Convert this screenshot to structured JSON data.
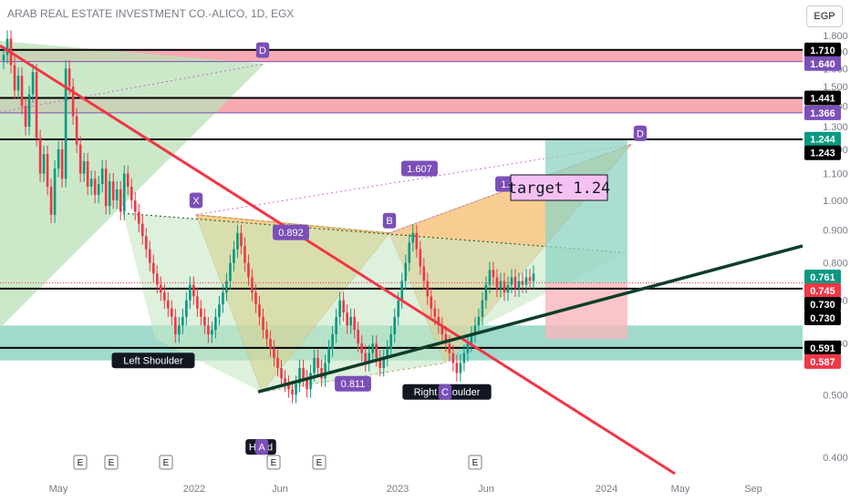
{
  "header": {
    "title": "ARAB REAL ESTATE INVESTMENT CO.-ALICO, 1D, EGX",
    "currency": "EGP"
  },
  "chart_data": {
    "type": "candlestick",
    "y_axis": {
      "ticks": [
        "1.800",
        "1.700",
        "1.600",
        "1.500",
        "1.400",
        "1.300",
        "1.200",
        "1.100",
        "1.000",
        "0.900",
        "0.800",
        "0.700",
        "0.600",
        "0.500",
        "0.400"
      ],
      "ylim": [
        0.36,
        1.84
      ],
      "scale": "log"
    },
    "x_axis": {
      "ticks": [
        {
          "label": "May",
          "date": "2021-05"
        },
        {
          "label": "2022",
          "date": "2022-01"
        },
        {
          "label": "Jun",
          "date": "2022-06"
        },
        {
          "label": "2023",
          "date": "2023-01"
        },
        {
          "label": "Jun",
          "date": "2023-06"
        },
        {
          "label": "2024",
          "date": "2024-01"
        },
        {
          "label": "May",
          "date": "2024-05"
        },
        {
          "label": "Sep",
          "date": "2024-09"
        }
      ]
    },
    "price_labels": [
      {
        "text": "1.710",
        "value": 1.71,
        "bg": "#000000"
      },
      {
        "text": "1.640",
        "value": 1.64,
        "bg": "#7b4fb8"
      },
      {
        "text": "1.441",
        "value": 1.441,
        "bg": "#000000"
      },
      {
        "text": "1.366",
        "value": 1.366,
        "bg": "#7b4fb8"
      },
      {
        "text": "1.244",
        "value": 1.244,
        "bg": "#089981"
      },
      {
        "text": "1.243",
        "value": 1.243,
        "bg": "#000000"
      },
      {
        "text": "0.761",
        "value": 0.761,
        "bg": "#089981"
      },
      {
        "text": "0.745",
        "value": 0.745,
        "bg": "#f23645"
      },
      {
        "text": "0.730",
        "value": 0.73,
        "bg": "#000000"
      },
      {
        "text": "0.730",
        "value": 0.73,
        "bg": "#000000"
      },
      {
        "text": "0.591",
        "value": 0.591,
        "bg": "#000000"
      },
      {
        "text": "0.587",
        "value": 0.587,
        "bg": "#f23645"
      }
    ],
    "harmonic_points": {
      "X": "X",
      "A": "A",
      "B": "B",
      "C": "C",
      "D": "D",
      "D_top": "D"
    },
    "ratios": [
      "0.892",
      "0.811",
      "1.607",
      "1.989"
    ],
    "pattern_labels": [
      "Left Shoulder",
      "Head",
      "Right Shoulder"
    ],
    "target_label": "target 1.24",
    "event_marker": "E",
    "series": [
      {
        "values": [
          1.68,
          1.78,
          1.62,
          1.48,
          1.56,
          1.4,
          1.3,
          1.46,
          1.58,
          1.25,
          1.1,
          1.18,
          1.05,
          0.95,
          1.12,
          1.2,
          1.08,
          1.6,
          1.5,
          1.35,
          1.22,
          1.1,
          1.15,
          1.05,
          1.08,
          1.02,
          1.06,
          1.12,
          0.98,
          1.07,
          1.0,
          1.04,
          0.96,
          1.1,
          1.05,
          1.0,
          0.96,
          0.92,
          0.88,
          0.84,
          0.8,
          0.77,
          0.74,
          0.72,
          0.7,
          0.68,
          0.66,
          0.62,
          0.64,
          0.66,
          0.7,
          0.74,
          0.71,
          0.68,
          0.66,
          0.64,
          0.62,
          0.63,
          0.66,
          0.69,
          0.72,
          0.75,
          0.8,
          0.84,
          0.89,
          0.85,
          0.8,
          0.76,
          0.72,
          0.69,
          0.66,
          0.63,
          0.61,
          0.59,
          0.57,
          0.55,
          0.53,
          0.52,
          0.51,
          0.5,
          0.52,
          0.55,
          0.53,
          0.51,
          0.54,
          0.57,
          0.55,
          0.53,
          0.56,
          0.59,
          0.62,
          0.66,
          0.7,
          0.67,
          0.64,
          0.66,
          0.63,
          0.6,
          0.58,
          0.56,
          0.58,
          0.6,
          0.57,
          0.55,
          0.57,
          0.59,
          0.62,
          0.66,
          0.7,
          0.75,
          0.8,
          0.86,
          0.89,
          0.84,
          0.79,
          0.75,
          0.71,
          0.68,
          0.66,
          0.64,
          0.62,
          0.6,
          0.58,
          0.56,
          0.54,
          0.56,
          0.58,
          0.6,
          0.62,
          0.64,
          0.66,
          0.7,
          0.74,
          0.78,
          0.76,
          0.73,
          0.75,
          0.72,
          0.74,
          0.76,
          0.73,
          0.75,
          0.74,
          0.76,
          0.75,
          0.77
        ]
      }
    ]
  }
}
